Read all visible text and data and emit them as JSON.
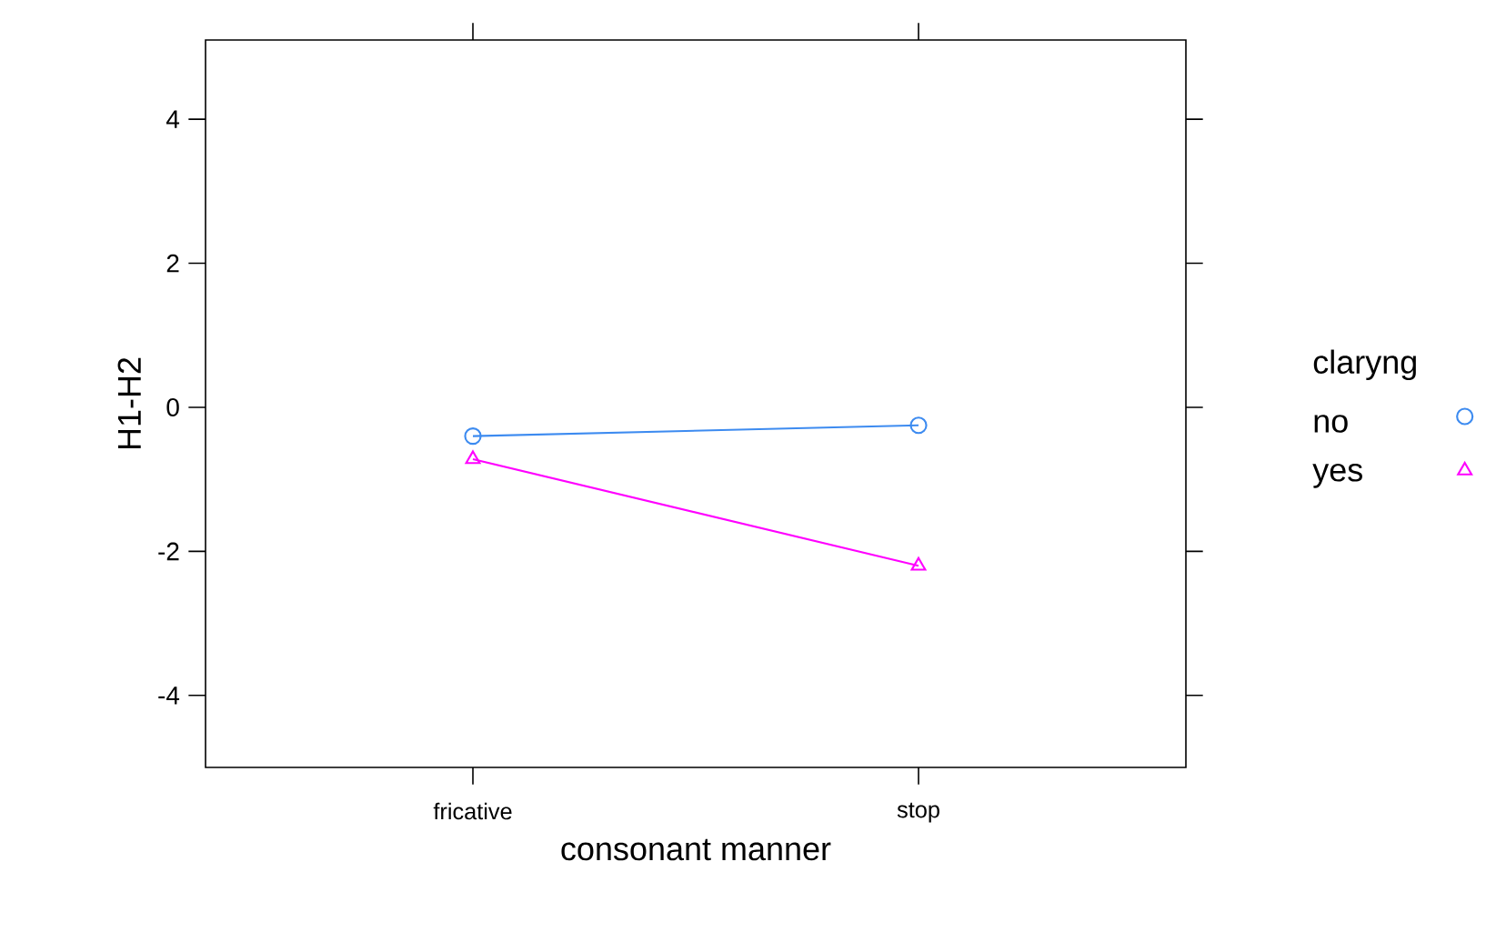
{
  "chart_data": {
    "type": "line",
    "categories": [
      "fricative",
      "stop"
    ],
    "series": [
      {
        "name": "no",
        "color": "#3d8bf0",
        "values": [
          -0.4,
          -0.25
        ],
        "marker": "circle"
      },
      {
        "name": "yes",
        "color": "#ff00ff",
        "values": [
          -0.72,
          -2.2
        ],
        "marker": "triangle"
      }
    ],
    "ylim": [
      -5,
      5.1
    ],
    "yticks": [
      -4,
      -2,
      0,
      2,
      4
    ],
    "xlabel": "consonant manner",
    "ylabel": "H1-H2",
    "legend_title": "claryng",
    "legend": "right"
  }
}
